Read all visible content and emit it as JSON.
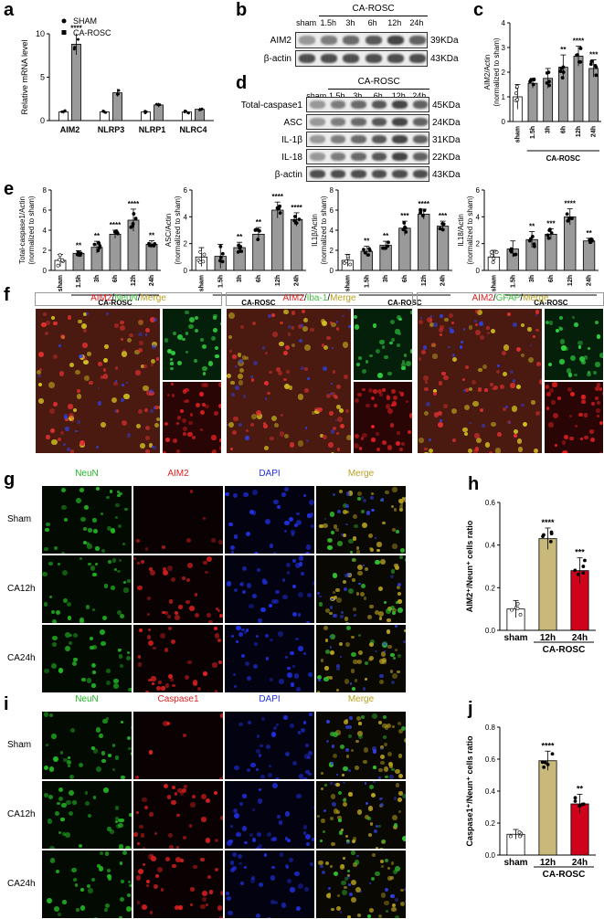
{
  "panels": {
    "a": "a",
    "b": "b",
    "c": "c",
    "d": "d",
    "e": "e",
    "f": "f",
    "g": "g",
    "h": "h",
    "i": "i",
    "j": "j"
  },
  "chart_a": {
    "type": "bar",
    "ylabel": "Relative mRNA level",
    "categories": [
      "AIM2",
      "NLRP3",
      "NLRP1",
      "NLRC4"
    ],
    "legend": [
      "SHAM",
      "CA-ROSC"
    ],
    "yticks": [
      "0",
      "5",
      "10"
    ],
    "ylim": [
      0,
      10
    ],
    "sham": [
      1.0,
      1.0,
      1.0,
      1.0
    ],
    "rosc": [
      8.8,
      3.2,
      1.8,
      1.3
    ],
    "sig": [
      "****",
      "",
      "",
      ""
    ]
  },
  "blot_b": {
    "header": "CA-ROSC",
    "lanes": [
      "sham",
      "1.5h",
      "3h",
      "6h",
      "12h",
      "24h"
    ],
    "rows": [
      {
        "name": "AIM2",
        "kda": "39KDa"
      },
      {
        "name": "β-actin",
        "kda": "43KDa"
      }
    ]
  },
  "blot_d": {
    "header": "CA-ROSC",
    "lanes": [
      "sham",
      "1.5h",
      "3h",
      "6h",
      "12h",
      "24h"
    ],
    "rows": [
      {
        "name": "Total-caspase1",
        "kda": "45KDa"
      },
      {
        "name": "ASC",
        "kda": "24KDa"
      },
      {
        "name": "IL-1β",
        "kda": "31KDa"
      },
      {
        "name": "IL-18",
        "kda": "22KDa"
      },
      {
        "name": "β-actin",
        "kda": "43KDa"
      }
    ]
  },
  "chart_data": [
    {
      "id": "c",
      "type": "bar",
      "ylabel": "AIM2/Actin\n(normalized to sham)",
      "categories": [
        "sham",
        "1.5h",
        "3h",
        "6h",
        "12h",
        "24h"
      ],
      "values": [
        1.0,
        1.55,
        1.75,
        2.2,
        2.65,
        2.15
      ],
      "err": [
        0.5,
        0.2,
        0.4,
        0.5,
        0.4,
        0.35
      ],
      "sig": [
        "",
        "",
        "",
        "**",
        "****",
        "***"
      ],
      "ylim": [
        0,
        4
      ],
      "yticks": [
        "0",
        "1",
        "2",
        "3",
        "4"
      ],
      "group": "CA-ROSC"
    },
    {
      "id": "e1",
      "type": "bar",
      "ylabel": "Total-caspase1/Actin\n(normalized to sham)",
      "categories": [
        "sham",
        "1.5h",
        "3h",
        "6h",
        "12h",
        "24h"
      ],
      "values": [
        1.0,
        1.7,
        2.3,
        3.6,
        5.0,
        2.6
      ],
      "err": [
        0.6,
        0.25,
        0.6,
        0.4,
        1.1,
        0.35
      ],
      "sig": [
        "",
        "**",
        "**",
        "****",
        "****",
        "**"
      ],
      "ylim": [
        0,
        8
      ],
      "yticks": [
        "0",
        "2",
        "4",
        "6",
        "8"
      ],
      "group": "CA-ROSC"
    },
    {
      "id": "e2",
      "type": "bar",
      "ylabel": "ASC/Actin\n(normalized to sham)",
      "categories": [
        "sham",
        "1.5h",
        "3h",
        "6h",
        "12h",
        "24h"
      ],
      "values": [
        1.0,
        1.05,
        1.7,
        2.7,
        4.5,
        3.8
      ],
      "err": [
        0.7,
        0.9,
        0.4,
        0.5,
        0.6,
        0.5
      ],
      "sig": [
        "",
        "",
        "**",
        "**",
        "****",
        "****"
      ],
      "ylim": [
        0,
        6
      ],
      "yticks": [
        "0",
        "2",
        "4",
        "6"
      ],
      "group": "CA-ROSC"
    },
    {
      "id": "e3",
      "type": "bar",
      "ylabel": "IL1β/Actin\n(normalized to sham)",
      "categories": [
        "sham",
        "1.5h",
        "3h",
        "6h",
        "12h",
        "24h"
      ],
      "values": [
        1.0,
        1.9,
        2.5,
        4.2,
        5.6,
        4.4
      ],
      "err": [
        0.6,
        0.5,
        0.4,
        0.7,
        0.5,
        0.5
      ],
      "sig": [
        "",
        "**",
        "**",
        "***",
        "****",
        "***"
      ],
      "ylim": [
        0,
        8
      ],
      "yticks": [
        "0",
        "2",
        "4",
        "6",
        "8"
      ],
      "group": "CA-ROSC"
    },
    {
      "id": "e4",
      "type": "bar",
      "ylabel": "IL18/Actin\n(normalized to sham)",
      "categories": [
        "sham",
        "1.5h",
        "3h",
        "6h",
        "12h",
        "24h"
      ],
      "values": [
        1.0,
        1.6,
        2.3,
        2.7,
        4.0,
        2.2
      ],
      "err": [
        0.5,
        0.6,
        0.6,
        0.4,
        0.6,
        0.2
      ],
      "sig": [
        "",
        "",
        "**",
        "***",
        "****",
        "**"
      ],
      "ylim": [
        0,
        6
      ],
      "yticks": [
        "0",
        "2",
        "4",
        "6"
      ],
      "group": "CA-ROSC"
    },
    {
      "id": "h",
      "type": "bar",
      "ylabel": "AIM2⁺/Neun⁺ cells ratio",
      "categories": [
        "sham",
        "12h",
        "24h"
      ],
      "values": [
        0.1,
        0.43,
        0.28
      ],
      "err": [
        0.04,
        0.05,
        0.06
      ],
      "sig": [
        "",
        "****",
        "***"
      ],
      "ylim": [
        0,
        0.6
      ],
      "yticks": [
        "0.0",
        "0.2",
        "0.4",
        "0.6"
      ],
      "colors": [
        "#ffffff",
        "#c8b97a",
        "#d0021b"
      ],
      "group": "CA-ROSC"
    },
    {
      "id": "j",
      "type": "bar",
      "ylabel": "Caspase1⁺/Neun⁺ cells ratio",
      "categories": [
        "sham",
        "12h",
        "24h"
      ],
      "values": [
        0.13,
        0.59,
        0.32
      ],
      "err": [
        0.03,
        0.06,
        0.06
      ],
      "sig": [
        "",
        "****",
        "**"
      ],
      "ylim": [
        0,
        0.8
      ],
      "yticks": [
        "0.0",
        "0.2",
        "0.4",
        "0.6",
        "0.8"
      ],
      "colors": [
        "#ffffff",
        "#c8b97a",
        "#d0021b"
      ],
      "group": "CA-ROSC"
    }
  ],
  "panel_f": {
    "groups": [
      {
        "p1": "AIM2",
        "sep1": "/",
        "p2": "NeuN",
        "sep2": "/",
        "p3": "Merge",
        "c2": "#3fbf3f"
      },
      {
        "p1": "AIM2",
        "sep1": "/",
        "p2": "Iba-1",
        "sep2": "/",
        "p3": "Merge",
        "c2": "#3fbf3f"
      },
      {
        "p1": "AIM2",
        "sep1": "/",
        "p2": "GFAP",
        "sep2": "/",
        "p3": "Merge",
        "c2": "#3fbf3f"
      }
    ]
  },
  "panel_g": {
    "columns": [
      "NeuN",
      "AIM2",
      "DAPI",
      "Merge"
    ],
    "rows": [
      "Sham",
      "CA12h",
      "CA24h"
    ]
  },
  "panel_i": {
    "columns": [
      "NeuN",
      "Caspase1",
      "DAPI",
      "Merge"
    ],
    "rows": [
      "Sham",
      "CA12h",
      "CA24h"
    ]
  },
  "colors": {
    "neun": "#22b822",
    "aim2": "#e02020",
    "dapi": "#2030e0",
    "merge": "#b8a020"
  }
}
